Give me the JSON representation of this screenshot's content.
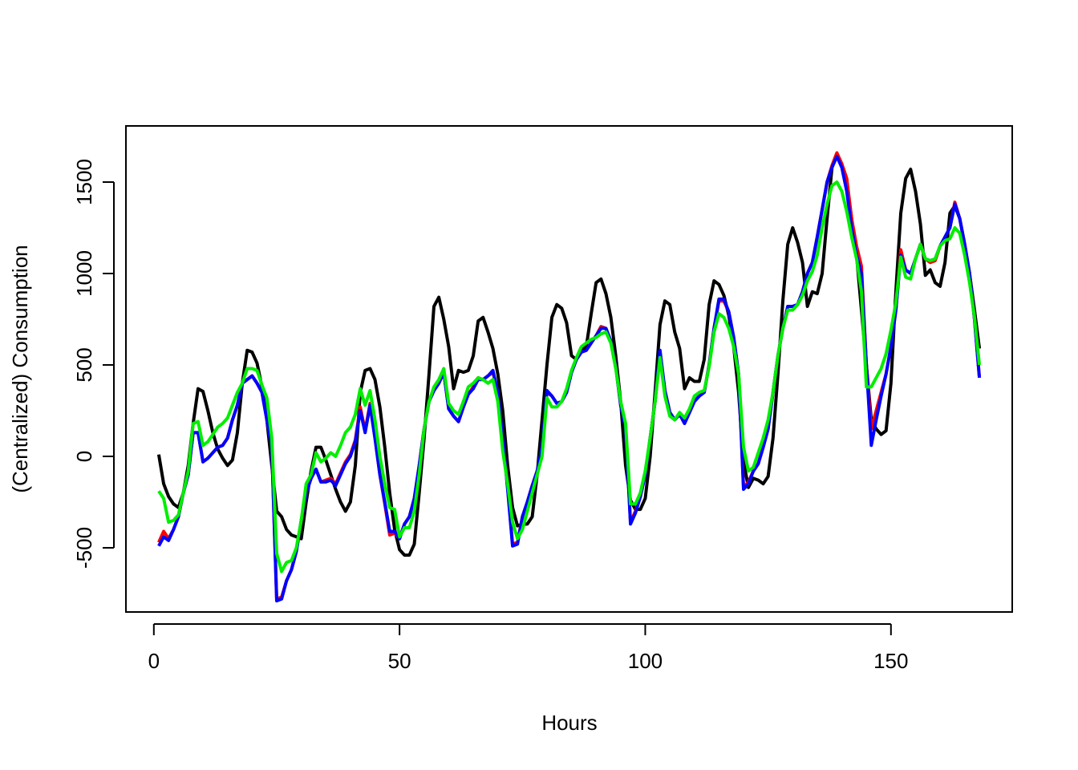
{
  "chart_data": {
    "type": "line",
    "xlabel": "Hours",
    "ylabel": "(Centralized) Consumption",
    "x": [
      1,
      2,
      3,
      4,
      5,
      6,
      7,
      8,
      9,
      10,
      11,
      12,
      13,
      14,
      15,
      16,
      17,
      18,
      19,
      20,
      21,
      22,
      23,
      24,
      25,
      26,
      27,
      28,
      29,
      30,
      31,
      32,
      33,
      34,
      35,
      36,
      37,
      38,
      39,
      40,
      41,
      42,
      43,
      44,
      45,
      46,
      47,
      48,
      49,
      50,
      51,
      52,
      53,
      54,
      55,
      56,
      57,
      58,
      59,
      60,
      61,
      62,
      63,
      64,
      65,
      66,
      67,
      68,
      69,
      70,
      71,
      72,
      73,
      74,
      75,
      76,
      77,
      78,
      79,
      80,
      81,
      82,
      83,
      84,
      85,
      86,
      87,
      88,
      89,
      90,
      91,
      92,
      93,
      94,
      95,
      96,
      97,
      98,
      99,
      100,
      101,
      102,
      103,
      104,
      105,
      106,
      107,
      108,
      109,
      110,
      111,
      112,
      113,
      114,
      115,
      116,
      117,
      118,
      119,
      120,
      121,
      122,
      123,
      124,
      125,
      126,
      127,
      128,
      129,
      130,
      131,
      132,
      133,
      134,
      135,
      136,
      137,
      138,
      139,
      140,
      141,
      142,
      143,
      144,
      145,
      146,
      147,
      148,
      149,
      150,
      151,
      152,
      153,
      154,
      155,
      156,
      157,
      158,
      159,
      160,
      161,
      162,
      163,
      164,
      165,
      166,
      167,
      168
    ],
    "series": [
      {
        "color": "#000000",
        "values": [
          10,
          -150,
          -220,
          -260,
          -280,
          -200,
          -50,
          180,
          370,
          355,
          250,
          130,
          40,
          -10,
          -50,
          -20,
          130,
          400,
          580,
          570,
          510,
          380,
          200,
          -50,
          -300,
          -330,
          -400,
          -430,
          -440,
          -450,
          -250,
          -80,
          50,
          50,
          -20,
          -100,
          -180,
          -250,
          -300,
          -250,
          -50,
          350,
          470,
          480,
          420,
          270,
          50,
          -200,
          -400,
          -510,
          -540,
          -540,
          -480,
          -200,
          100,
          450,
          820,
          870,
          750,
          600,
          370,
          470,
          460,
          470,
          550,
          740,
          760,
          680,
          590,
          450,
          250,
          -50,
          -280,
          -380,
          -370,
          -370,
          -330,
          -100,
          200,
          500,
          760,
          830,
          810,
          730,
          550,
          530,
          580,
          600,
          780,
          950,
          970,
          890,
          760,
          550,
          300,
          -50,
          -240,
          -290,
          -290,
          -230,
          0,
          350,
          720,
          850,
          830,
          680,
          590,
          370,
          430,
          410,
          410,
          530,
          830,
          960,
          940,
          880,
          770,
          600,
          350,
          -30,
          -170,
          -120,
          -130,
          -150,
          -110,
          100,
          450,
          850,
          1160,
          1250,
          1170,
          1060,
          820,
          900,
          890,
          1000,
          1300,
          1580,
          1650,
          1590,
          1500,
          1300,
          1100,
          800,
          500,
          200,
          150,
          120,
          140,
          400,
          900,
          1330,
          1520,
          1570,
          1450,
          1270,
          990,
          1020,
          950,
          930,
          1060,
          1330,
          1370,
          1300,
          1160,
          1000,
          800,
          590
        ]
      },
      {
        "color": "#ff0000",
        "values": [
          -470,
          -410,
          -450,
          -400,
          -330,
          -200,
          -100,
          130,
          130,
          -30,
          -10,
          20,
          50,
          60,
          100,
          200,
          280,
          400,
          420,
          440,
          400,
          350,
          200,
          50,
          -780,
          -770,
          -680,
          -620,
          -520,
          -350,
          -200,
          -120,
          -70,
          -140,
          -130,
          -120,
          -150,
          -90,
          -30,
          10,
          90,
          270,
          140,
          290,
          100,
          -100,
          -260,
          -430,
          -420,
          -450,
          -370,
          -330,
          -230,
          -50,
          150,
          300,
          360,
          400,
          460,
          260,
          220,
          190,
          270,
          340,
          380,
          430,
          420,
          440,
          460,
          350,
          100,
          -170,
          -480,
          -470,
          -330,
          -250,
          -160,
          -80,
          50,
          350,
          330,
          290,
          300,
          350,
          460,
          530,
          570,
          580,
          620,
          660,
          710,
          700,
          630,
          490,
          280,
          160,
          -360,
          -300,
          -220,
          -100,
          100,
          300,
          570,
          360,
          240,
          200,
          230,
          180,
          240,
          300,
          330,
          350,
          500,
          700,
          850,
          850,
          790,
          650,
          450,
          -170,
          -140,
          -80,
          -40,
          50,
          150,
          350,
          550,
          700,
          820,
          820,
          830,
          900,
          1000,
          1060,
          1200,
          1350,
          1500,
          1590,
          1660,
          1600,
          1520,
          1300,
          1150,
          1040,
          500,
          150,
          250,
          350,
          450,
          600,
          800,
          1130,
          1020,
          1000,
          1080,
          1160,
          1080,
          1060,
          1070,
          1150,
          1200,
          1250,
          1390,
          1300,
          1160,
          1000,
          750,
          430
        ]
      },
      {
        "color": "#0000ff",
        "values": [
          -490,
          -440,
          -460,
          -400,
          -330,
          -200,
          -100,
          130,
          130,
          -30,
          -10,
          20,
          50,
          60,
          100,
          200,
          280,
          400,
          420,
          440,
          400,
          350,
          200,
          50,
          -790,
          -780,
          -680,
          -620,
          -520,
          -350,
          -200,
          -120,
          -70,
          -140,
          -140,
          -130,
          -160,
          -100,
          -40,
          0,
          80,
          250,
          130,
          280,
          100,
          -100,
          -250,
          -410,
          -410,
          -450,
          -370,
          -330,
          -230,
          -50,
          150,
          300,
          360,
          400,
          460,
          260,
          220,
          190,
          270,
          340,
          370,
          420,
          420,
          440,
          470,
          350,
          100,
          -180,
          -490,
          -480,
          -330,
          -250,
          -160,
          -80,
          50,
          360,
          330,
          290,
          300,
          350,
          460,
          530,
          570,
          580,
          620,
          660,
          700,
          700,
          630,
          490,
          280,
          150,
          -370,
          -310,
          -220,
          -100,
          100,
          300,
          580,
          360,
          240,
          200,
          230,
          180,
          240,
          300,
          330,
          350,
          500,
          700,
          860,
          860,
          790,
          650,
          450,
          -180,
          -150,
          -80,
          -40,
          50,
          150,
          350,
          550,
          700,
          820,
          820,
          830,
          900,
          1000,
          1060,
          1200,
          1350,
          1500,
          1580,
          1640,
          1580,
          1450,
          1250,
          1100,
          1000,
          500,
          60,
          200,
          330,
          450,
          600,
          800,
          1100,
          1020,
          1000,
          1080,
          1160,
          1080,
          1070,
          1080,
          1150,
          1200,
          1250,
          1380,
          1300,
          1160,
          1000,
          750,
          430
        ]
      },
      {
        "color": "#00ee00",
        "values": [
          -190,
          -230,
          -360,
          -350,
          -320,
          -200,
          -80,
          180,
          190,
          60,
          80,
          120,
          160,
          180,
          210,
          280,
          350,
          400,
          480,
          480,
          470,
          390,
          320,
          100,
          -530,
          -630,
          -580,
          -570,
          -500,
          -350,
          -150,
          -100,
          20,
          -30,
          -10,
          20,
          0,
          60,
          130,
          160,
          230,
          370,
          280,
          360,
          200,
          0,
          -150,
          -280,
          -290,
          -440,
          -390,
          -390,
          -300,
          -100,
          150,
          300,
          380,
          420,
          480,
          290,
          250,
          230,
          300,
          380,
          400,
          430,
          420,
          400,
          420,
          300,
          30,
          -150,
          -360,
          -450,
          -400,
          -300,
          -200,
          -100,
          0,
          320,
          270,
          270,
          300,
          370,
          470,
          540,
          600,
          620,
          640,
          650,
          670,
          680,
          620,
          480,
          300,
          180,
          -260,
          -260,
          -200,
          -80,
          100,
          300,
          540,
          330,
          220,
          200,
          240,
          210,
          260,
          330,
          350,
          360,
          490,
          680,
          780,
          760,
          700,
          600,
          450,
          50,
          -80,
          -60,
          20,
          100,
          200,
          350,
          550,
          700,
          800,
          800,
          830,
          880,
          960,
          1010,
          1100,
          1250,
          1380,
          1480,
          1500,
          1450,
          1340,
          1200,
          1080,
          900,
          380,
          380,
          430,
          480,
          560,
          690,
          840,
          1090,
          980,
          970,
          1080,
          1160,
          1080,
          1070,
          1080,
          1150,
          1180,
          1190,
          1250,
          1220,
          1100,
          950,
          760,
          500
        ]
      }
    ],
    "xlim": [
      -5.68,
      174.68
    ],
    "ylim": [
      -851,
      1807
    ],
    "xticks": [
      0,
      50,
      100,
      150
    ],
    "yticks": [
      -500,
      0,
      500,
      1000,
      1500
    ]
  }
}
